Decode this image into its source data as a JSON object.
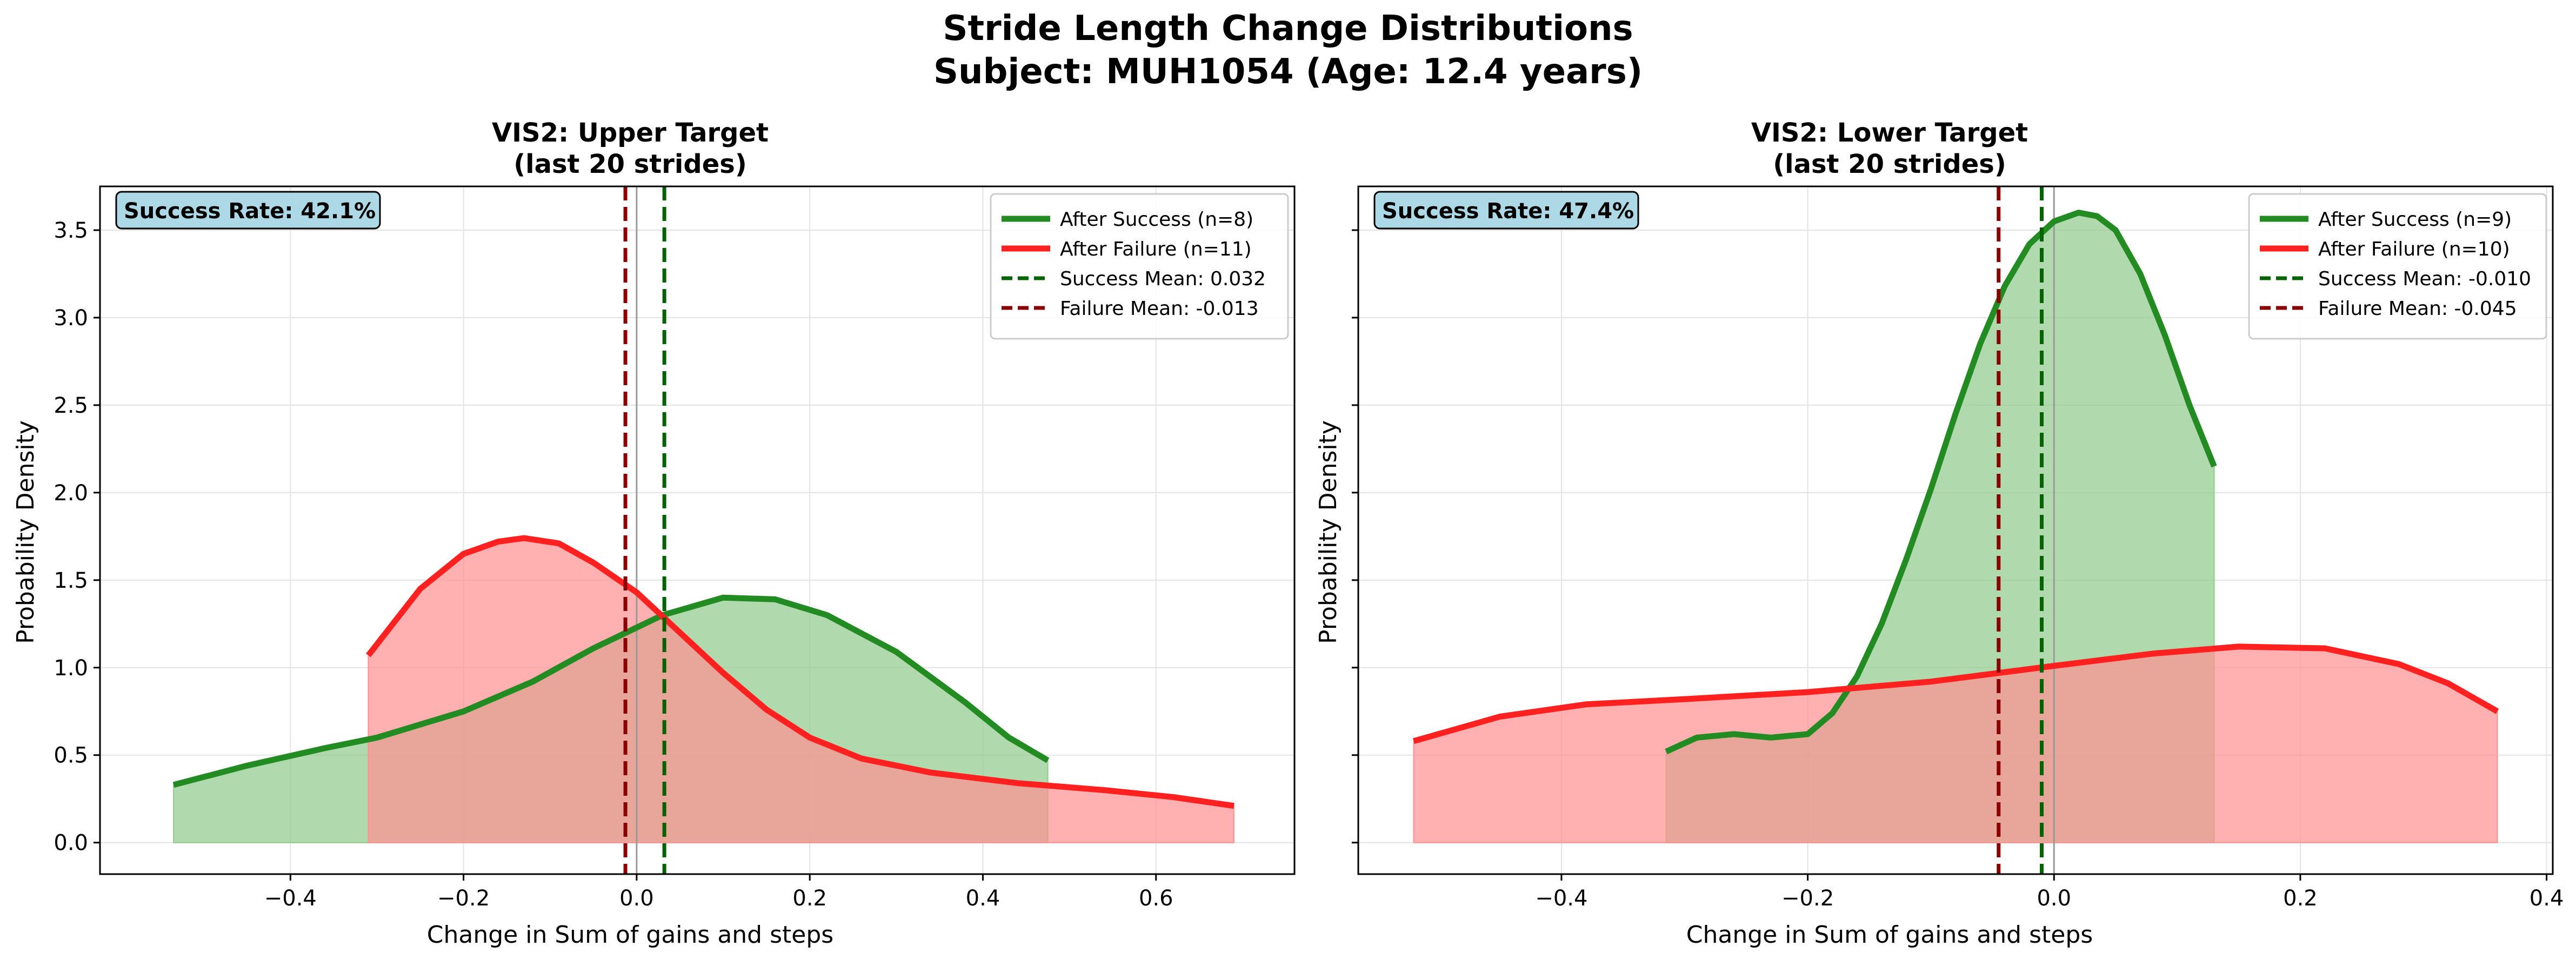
{
  "figure": {
    "title_line1": "Stride Length Change Distributions",
    "title_line2": "Subject: MUH1054 (Age: 12.4 years)"
  },
  "colors": {
    "success_line": "#228b22",
    "success_fill": "#8fca8a",
    "failure_line": "#ff2020",
    "failure_fill": "#ff9090",
    "success_mean": "#006400",
    "failure_mean": "#8b0000",
    "badge_bg": "#add8e6"
  },
  "chart_data": [
    {
      "type": "area",
      "title_line1": "VIS2: Upper Target",
      "title_line2": "(last 20 strides)",
      "xlabel": "Change in Sum of gains and steps",
      "ylabel": "Probability Density",
      "xlim": [
        -0.62,
        0.76
      ],
      "ylim": [
        -0.18,
        3.75
      ],
      "xticks": [
        -0.4,
        -0.2,
        0.0,
        0.2,
        0.4,
        0.6
      ],
      "xtick_labels": [
        "−0.4",
        "−0.2",
        "0.0",
        "0.2",
        "0.4",
        "0.6"
      ],
      "yticks": [
        0.0,
        0.5,
        1.0,
        1.5,
        2.0,
        2.5,
        3.0,
        3.5
      ],
      "ytick_labels": [
        "0.0",
        "0.5",
        "1.0",
        "1.5",
        "2.0",
        "2.5",
        "3.0",
        "3.5"
      ],
      "grid": true,
      "legend_position": "top-right",
      "annotation": "Success Rate: 42.1%",
      "series": [
        {
          "name": "After Success (n=8)",
          "role": "success",
          "x": [
            -0.535,
            -0.45,
            -0.36,
            -0.3,
            -0.2,
            -0.12,
            -0.05,
            0.03,
            0.1,
            0.16,
            0.22,
            0.3,
            0.38,
            0.43,
            0.475
          ],
          "y": [
            0.33,
            0.44,
            0.54,
            0.6,
            0.75,
            0.92,
            1.11,
            1.3,
            1.4,
            1.39,
            1.3,
            1.09,
            0.8,
            0.6,
            0.47
          ]
        },
        {
          "name": "After Failure (n=11)",
          "role": "failure",
          "x": [
            -0.31,
            -0.25,
            -0.2,
            -0.16,
            -0.13,
            -0.09,
            -0.05,
            0.0,
            0.05,
            0.1,
            0.15,
            0.2,
            0.26,
            0.34,
            0.44,
            0.54,
            0.62,
            0.69
          ],
          "y": [
            1.07,
            1.45,
            1.65,
            1.72,
            1.74,
            1.71,
            1.6,
            1.43,
            1.2,
            0.97,
            0.76,
            0.6,
            0.48,
            0.4,
            0.34,
            0.3,
            0.26,
            0.21
          ]
        }
      ],
      "means": [
        {
          "name": "Success Mean: 0.032",
          "role": "success",
          "value": 0.032
        },
        {
          "name": "Failure Mean: -0.013",
          "role": "failure",
          "value": -0.013
        }
      ]
    },
    {
      "type": "area",
      "title_line1": "VIS2: Lower Target",
      "title_line2": "(last 20 strides)",
      "xlabel": "Change in Sum of gains and steps",
      "ylabel": "Probability Density",
      "xlim": [
        -0.565,
        0.405
      ],
      "ylim": [
        -0.18,
        3.75
      ],
      "xticks": [
        -0.4,
        -0.2,
        0.0,
        0.2,
        0.4
      ],
      "xtick_labels": [
        "−0.4",
        "−0.2",
        "0.0",
        "0.2",
        "0.4"
      ],
      "yticks": [
        0.0,
        0.5,
        1.0,
        1.5,
        2.0,
        2.5,
        3.0,
        3.5
      ],
      "ytick_labels": [],
      "grid": true,
      "legend_position": "top-right",
      "annotation": "Success Rate: 47.4%",
      "series": [
        {
          "name": "After Success (n=9)",
          "role": "success",
          "x": [
            -0.315,
            -0.29,
            -0.26,
            -0.23,
            -0.2,
            -0.18,
            -0.16,
            -0.14,
            -0.12,
            -0.1,
            -0.08,
            -0.06,
            -0.04,
            -0.02,
            0.0,
            0.02,
            0.035,
            0.05,
            0.07,
            0.09,
            0.11,
            0.13
          ],
          "y": [
            0.52,
            0.6,
            0.62,
            0.6,
            0.62,
            0.74,
            0.95,
            1.25,
            1.62,
            2.02,
            2.45,
            2.85,
            3.18,
            3.42,
            3.55,
            3.6,
            3.58,
            3.5,
            3.25,
            2.9,
            2.5,
            2.15
          ]
        },
        {
          "name": "After Failure (n=10)",
          "role": "failure",
          "x": [
            -0.52,
            -0.45,
            -0.38,
            -0.3,
            -0.2,
            -0.1,
            0.0,
            0.08,
            0.15,
            0.22,
            0.28,
            0.32,
            0.36
          ],
          "y": [
            0.58,
            0.72,
            0.79,
            0.82,
            0.86,
            0.92,
            1.01,
            1.08,
            1.12,
            1.11,
            1.02,
            0.91,
            0.75
          ]
        }
      ],
      "means": [
        {
          "name": "Success Mean: -0.010",
          "role": "success",
          "value": -0.01
        },
        {
          "name": "Failure Mean: -0.045",
          "role": "failure",
          "value": -0.045
        }
      ]
    }
  ]
}
